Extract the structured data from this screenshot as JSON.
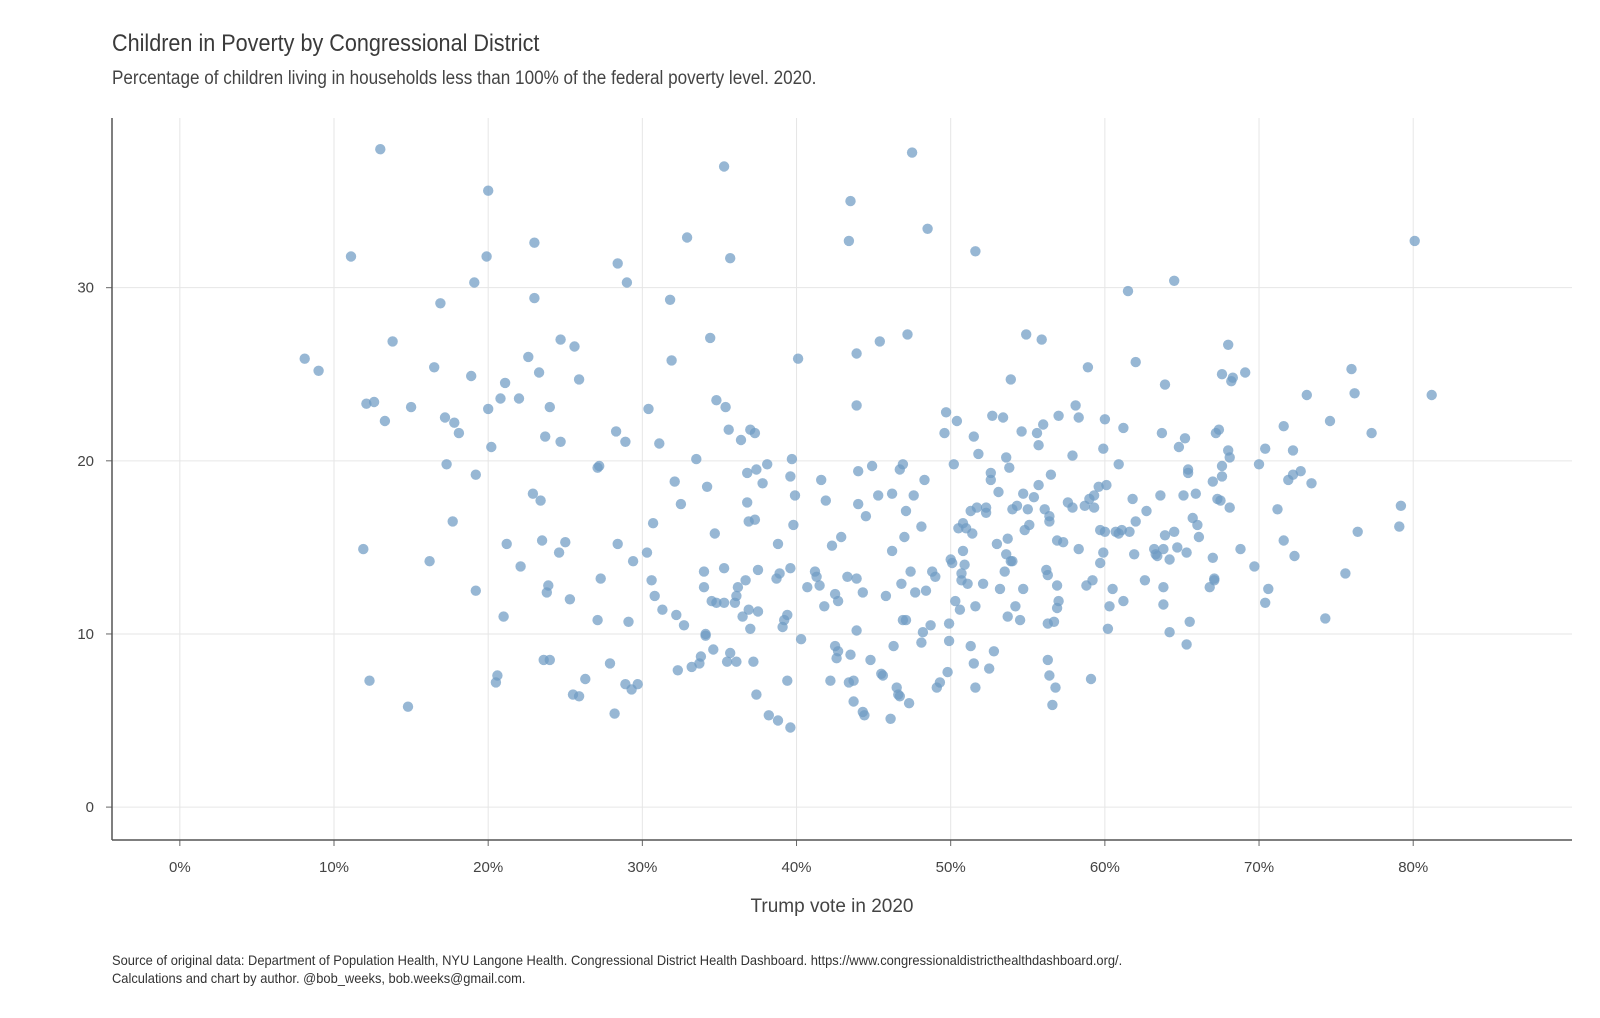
{
  "chart_data": {
    "type": "scatter",
    "title": "Children in Poverty by Congressional District",
    "subtitle": "Percentage of children living in households less than 100% of the federal poverty level. 2020.",
    "xlabel": "Trump vote in 2020",
    "ylabel": "",
    "xlim": [
      -4.4,
      90.3
    ],
    "ylim": [
      -1.9,
      39.8
    ],
    "x_ticks": [
      0,
      10,
      20,
      30,
      40,
      50,
      60,
      70,
      80
    ],
    "x_tick_labels": [
      "0%",
      "10%",
      "20%",
      "30%",
      "40%",
      "50%",
      "60%",
      "70%",
      "80%"
    ],
    "y_ticks": [
      0,
      10,
      20,
      30
    ],
    "y_tick_labels": [
      "0",
      "10",
      "20",
      "30"
    ],
    "grid": true,
    "legend": "none",
    "point_color": "#6f9bc4",
    "caption_lines": [
      "Source of original data: Department of Population Health, NYU Langone Health. Congressional District Health Dashboard. https://www.congressionaldistricthealthdashboard.org/.",
      "Calculations and chart by author. @bob_weeks, bob.weeks@gmail.com."
    ],
    "points": [
      [
        8.1,
        25.9
      ],
      [
        9.0,
        25.2
      ],
      [
        11.1,
        31.8
      ],
      [
        11.9,
        14.9
      ],
      [
        12.1,
        23.3
      ],
      [
        12.3,
        7.3
      ],
      [
        12.6,
        23.4
      ],
      [
        13.0,
        38.0
      ],
      [
        13.3,
        22.3
      ],
      [
        13.8,
        26.9
      ],
      [
        14.8,
        5.8
      ],
      [
        15.0,
        23.1
      ],
      [
        16.2,
        14.2
      ],
      [
        16.5,
        25.4
      ],
      [
        16.9,
        29.1
      ],
      [
        17.2,
        22.5
      ],
      [
        17.3,
        19.8
      ],
      [
        17.7,
        16.5
      ],
      [
        17.8,
        22.2
      ],
      [
        18.1,
        21.6
      ],
      [
        18.9,
        24.9
      ],
      [
        19.1,
        30.3
      ],
      [
        19.2,
        19.2
      ],
      [
        19.2,
        12.5
      ],
      [
        19.9,
        31.8
      ],
      [
        20.0,
        35.6
      ],
      [
        20.0,
        23.0
      ],
      [
        20.2,
        20.8
      ],
      [
        20.5,
        7.2
      ],
      [
        20.6,
        7.6
      ],
      [
        20.8,
        23.6
      ],
      [
        21.0,
        11.0
      ],
      [
        21.1,
        24.5
      ],
      [
        21.2,
        15.2
      ],
      [
        22.0,
        23.6
      ],
      [
        22.1,
        13.9
      ],
      [
        22.6,
        26.0
      ],
      [
        22.9,
        18.1
      ],
      [
        23.0,
        29.4
      ],
      [
        23.0,
        32.6
      ],
      [
        23.3,
        25.1
      ],
      [
        23.4,
        17.7
      ],
      [
        23.5,
        15.4
      ],
      [
        23.6,
        8.5
      ],
      [
        23.7,
        21.4
      ],
      [
        23.8,
        12.4
      ],
      [
        23.9,
        12.8
      ],
      [
        24.0,
        23.1
      ],
      [
        24.0,
        8.5
      ],
      [
        24.6,
        14.7
      ],
      [
        24.7,
        27.0
      ],
      [
        24.7,
        21.1
      ],
      [
        25.0,
        15.3
      ],
      [
        25.3,
        12.0
      ],
      [
        25.5,
        6.5
      ],
      [
        25.6,
        26.6
      ],
      [
        25.9,
        6.4
      ],
      [
        25.9,
        24.7
      ],
      [
        26.3,
        7.4
      ],
      [
        27.1,
        10.8
      ],
      [
        27.1,
        19.6
      ],
      [
        27.2,
        19.7
      ],
      [
        27.3,
        13.2
      ],
      [
        27.9,
        8.3
      ],
      [
        28.2,
        5.4
      ],
      [
        28.3,
        21.7
      ],
      [
        28.4,
        31.4
      ],
      [
        28.4,
        15.2
      ],
      [
        28.9,
        7.1
      ],
      [
        28.9,
        21.1
      ],
      [
        29.0,
        30.3
      ],
      [
        29.1,
        10.7
      ],
      [
        29.3,
        6.8
      ],
      [
        29.4,
        14.2
      ],
      [
        29.7,
        7.1
      ],
      [
        30.3,
        14.7
      ],
      [
        30.4,
        23.0
      ],
      [
        30.6,
        13.1
      ],
      [
        30.7,
        16.4
      ],
      [
        30.8,
        12.2
      ],
      [
        31.1,
        21.0
      ],
      [
        31.3,
        11.4
      ],
      [
        31.8,
        29.3
      ],
      [
        31.9,
        25.8
      ],
      [
        32.1,
        18.8
      ],
      [
        32.2,
        11.1
      ],
      [
        32.3,
        7.9
      ],
      [
        32.5,
        17.5
      ],
      [
        32.7,
        10.5
      ],
      [
        32.9,
        32.9
      ],
      [
        33.2,
        8.1
      ],
      [
        33.5,
        20.1
      ],
      [
        33.7,
        8.3
      ],
      [
        33.8,
        8.7
      ],
      [
        34.0,
        13.6
      ],
      [
        34.0,
        12.7
      ],
      [
        34.1,
        10.0
      ],
      [
        34.1,
        9.9
      ],
      [
        34.2,
        18.5
      ],
      [
        34.4,
        27.1
      ],
      [
        34.5,
        11.9
      ],
      [
        34.6,
        9.1
      ],
      [
        34.7,
        15.8
      ],
      [
        34.8,
        11.8
      ],
      [
        34.8,
        23.5
      ],
      [
        35.3,
        11.8
      ],
      [
        35.3,
        37.0
      ],
      [
        35.3,
        13.8
      ],
      [
        35.4,
        23.1
      ],
      [
        35.5,
        8.4
      ],
      [
        35.6,
        21.8
      ],
      [
        35.7,
        31.7
      ],
      [
        35.7,
        8.9
      ],
      [
        36.0,
        11.8
      ],
      [
        36.1,
        12.2
      ],
      [
        36.1,
        8.4
      ],
      [
        36.2,
        12.7
      ],
      [
        36.4,
        21.2
      ],
      [
        36.5,
        11.0
      ],
      [
        36.7,
        13.1
      ],
      [
        36.8,
        19.3
      ],
      [
        36.8,
        17.6
      ],
      [
        36.9,
        11.4
      ],
      [
        36.9,
        16.5
      ],
      [
        37.0,
        10.3
      ],
      [
        37.0,
        21.8
      ],
      [
        37.2,
        8.4
      ],
      [
        37.3,
        21.6
      ],
      [
        37.3,
        16.6
      ],
      [
        37.4,
        19.5
      ],
      [
        37.4,
        6.5
      ],
      [
        37.5,
        13.7
      ],
      [
        37.5,
        11.3
      ],
      [
        37.8,
        18.7
      ],
      [
        38.1,
        19.8
      ],
      [
        38.2,
        5.3
      ],
      [
        38.7,
        13.2
      ],
      [
        38.8,
        15.2
      ],
      [
        38.8,
        5.0
      ],
      [
        38.9,
        13.5
      ],
      [
        39.1,
        10.4
      ],
      [
        39.2,
        10.8
      ],
      [
        39.4,
        11.1
      ],
      [
        39.4,
        7.3
      ],
      [
        39.6,
        19.1
      ],
      [
        39.6,
        4.6
      ],
      [
        39.6,
        13.8
      ],
      [
        39.7,
        20.1
      ],
      [
        39.8,
        16.3
      ],
      [
        39.9,
        18.0
      ],
      [
        40.1,
        25.9
      ],
      [
        40.3,
        9.7
      ],
      [
        40.7,
        12.7
      ],
      [
        41.2,
        13.6
      ],
      [
        41.3,
        13.3
      ],
      [
        41.5,
        12.8
      ],
      [
        41.6,
        18.9
      ],
      [
        41.8,
        11.6
      ],
      [
        41.9,
        17.7
      ],
      [
        42.2,
        7.3
      ],
      [
        42.3,
        15.1
      ],
      [
        42.5,
        9.3
      ],
      [
        42.5,
        12.3
      ],
      [
        42.6,
        8.6
      ],
      [
        42.7,
        11.9
      ],
      [
        42.7,
        9.0
      ],
      [
        42.9,
        15.6
      ],
      [
        43.3,
        13.3
      ],
      [
        43.4,
        7.2
      ],
      [
        43.4,
        32.7
      ],
      [
        43.5,
        35.0
      ],
      [
        43.5,
        8.8
      ],
      [
        43.7,
        7.3
      ],
      [
        43.7,
        6.1
      ],
      [
        43.9,
        13.2
      ],
      [
        43.9,
        26.2
      ],
      [
        43.9,
        10.2
      ],
      [
        43.9,
        23.2
      ],
      [
        44.0,
        19.4
      ],
      [
        44.0,
        17.5
      ],
      [
        44.3,
        12.4
      ],
      [
        44.3,
        5.5
      ],
      [
        44.4,
        5.3
      ],
      [
        44.5,
        16.8
      ],
      [
        44.8,
        8.5
      ],
      [
        44.9,
        19.7
      ],
      [
        45.3,
        18.0
      ],
      [
        45.4,
        26.9
      ],
      [
        45.5,
        7.7
      ],
      [
        45.6,
        7.6
      ],
      [
        45.8,
        12.2
      ],
      [
        46.1,
        5.1
      ],
      [
        46.2,
        18.1
      ],
      [
        46.2,
        14.8
      ],
      [
        46.3,
        9.3
      ],
      [
        46.5,
        6.9
      ],
      [
        46.6,
        6.5
      ],
      [
        46.7,
        19.5
      ],
      [
        46.7,
        6.4
      ],
      [
        46.8,
        12.9
      ],
      [
        46.9,
        10.8
      ],
      [
        46.9,
        19.8
      ],
      [
        47.0,
        15.6
      ],
      [
        47.1,
        17.1
      ],
      [
        47.1,
        10.8
      ],
      [
        47.2,
        27.3
      ],
      [
        47.3,
        6.0
      ],
      [
        47.4,
        13.6
      ],
      [
        47.5,
        37.8
      ],
      [
        47.6,
        18.0
      ],
      [
        47.7,
        12.4
      ],
      [
        48.1,
        16.2
      ],
      [
        48.1,
        9.5
      ],
      [
        48.2,
        10.1
      ],
      [
        48.3,
        18.9
      ],
      [
        48.4,
        12.5
      ],
      [
        48.5,
        33.4
      ],
      [
        48.7,
        10.5
      ],
      [
        48.8,
        13.6
      ],
      [
        49.0,
        13.3
      ],
      [
        49.1,
        6.9
      ],
      [
        49.3,
        7.2
      ],
      [
        49.6,
        21.6
      ],
      [
        49.7,
        22.8
      ],
      [
        49.8,
        7.8
      ],
      [
        49.9,
        10.6
      ],
      [
        49.9,
        9.6
      ],
      [
        50.0,
        14.3
      ],
      [
        50.1,
        14.1
      ],
      [
        50.2,
        19.8
      ],
      [
        50.3,
        11.9
      ],
      [
        50.4,
        22.3
      ],
      [
        50.5,
        16.1
      ],
      [
        50.6,
        11.4
      ],
      [
        50.7,
        13.1
      ],
      [
        50.7,
        13.5
      ],
      [
        50.8,
        14.8
      ],
      [
        50.8,
        16.4
      ],
      [
        50.9,
        14.0
      ],
      [
        51.0,
        16.1
      ],
      [
        51.1,
        12.9
      ],
      [
        51.3,
        17.1
      ],
      [
        51.3,
        9.3
      ],
      [
        51.4,
        15.8
      ],
      [
        51.5,
        8.3
      ],
      [
        51.5,
        21.4
      ],
      [
        51.6,
        6.9
      ],
      [
        51.6,
        11.6
      ],
      [
        51.6,
        32.1
      ],
      [
        51.7,
        17.3
      ],
      [
        51.8,
        20.4
      ],
      [
        52.1,
        12.9
      ],
      [
        52.3,
        17.0
      ],
      [
        52.3,
        17.3
      ],
      [
        52.5,
        8.0
      ],
      [
        52.6,
        19.3
      ],
      [
        52.6,
        18.9
      ],
      [
        52.7,
        22.6
      ],
      [
        52.8,
        9.0
      ],
      [
        53.0,
        15.2
      ],
      [
        53.1,
        18.2
      ],
      [
        53.2,
        12.6
      ],
      [
        53.4,
        22.5
      ],
      [
        53.5,
        13.6
      ],
      [
        53.6,
        14.6
      ],
      [
        53.6,
        20.2
      ],
      [
        53.7,
        15.5
      ],
      [
        53.7,
        11.0
      ],
      [
        53.8,
        19.6
      ],
      [
        53.9,
        24.7
      ],
      [
        53.9,
        14.2
      ],
      [
        54.0,
        17.2
      ],
      [
        54.0,
        14.2
      ],
      [
        54.2,
        11.6
      ],
      [
        54.3,
        17.4
      ],
      [
        54.5,
        10.8
      ],
      [
        54.6,
        21.7
      ],
      [
        54.7,
        18.1
      ],
      [
        54.7,
        12.6
      ],
      [
        54.8,
        16.0
      ],
      [
        54.9,
        27.3
      ],
      [
        55.0,
        17.2
      ],
      [
        55.1,
        16.3
      ],
      [
        55.4,
        17.9
      ],
      [
        55.6,
        21.6
      ],
      [
        55.7,
        20.9
      ],
      [
        55.7,
        18.6
      ],
      [
        55.9,
        27.0
      ],
      [
        56.0,
        22.1
      ],
      [
        56.1,
        17.2
      ],
      [
        56.2,
        13.7
      ],
      [
        56.3,
        13.4
      ],
      [
        56.3,
        10.6
      ],
      [
        56.3,
        8.5
      ],
      [
        56.4,
        7.6
      ],
      [
        56.4,
        16.8
      ],
      [
        56.4,
        16.5
      ],
      [
        56.5,
        19.2
      ],
      [
        56.6,
        5.9
      ],
      [
        56.7,
        10.7
      ],
      [
        56.8,
        6.9
      ],
      [
        56.9,
        15.4
      ],
      [
        56.9,
        12.8
      ],
      [
        56.9,
        11.5
      ],
      [
        57.0,
        11.9
      ],
      [
        57.0,
        22.6
      ],
      [
        57.3,
        15.3
      ],
      [
        57.6,
        17.6
      ],
      [
        57.9,
        20.3
      ],
      [
        57.9,
        17.3
      ],
      [
        58.1,
        23.2
      ],
      [
        58.3,
        22.5
      ],
      [
        58.3,
        14.9
      ],
      [
        58.7,
        17.4
      ],
      [
        58.8,
        12.8
      ],
      [
        58.9,
        25.4
      ],
      [
        59.0,
        17.8
      ],
      [
        59.1,
        7.4
      ],
      [
        59.2,
        13.1
      ],
      [
        59.3,
        18.0
      ],
      [
        59.3,
        17.3
      ],
      [
        59.6,
        18.5
      ],
      [
        59.7,
        16.0
      ],
      [
        59.7,
        14.1
      ],
      [
        59.9,
        14.7
      ],
      [
        59.9,
        20.7
      ],
      [
        60.0,
        22.4
      ],
      [
        60.0,
        15.9
      ],
      [
        60.1,
        18.6
      ],
      [
        60.2,
        10.3
      ],
      [
        60.3,
        11.6
      ],
      [
        60.5,
        12.6
      ],
      [
        60.7,
        15.9
      ],
      [
        60.9,
        15.8
      ],
      [
        60.9,
        19.8
      ],
      [
        61.1,
        16.0
      ],
      [
        61.2,
        11.9
      ],
      [
        61.2,
        21.9
      ],
      [
        61.5,
        29.8
      ],
      [
        61.6,
        15.9
      ],
      [
        61.8,
        17.8
      ],
      [
        61.9,
        14.6
      ],
      [
        62.0,
        25.7
      ],
      [
        62.0,
        16.5
      ],
      [
        62.6,
        13.1
      ],
      [
        62.7,
        17.1
      ],
      [
        63.2,
        14.9
      ],
      [
        63.3,
        14.6
      ],
      [
        63.4,
        14.5
      ],
      [
        63.6,
        18.0
      ],
      [
        63.7,
        21.6
      ],
      [
        63.8,
        11.7
      ],
      [
        63.8,
        12.7
      ],
      [
        63.8,
        14.9
      ],
      [
        63.9,
        24.4
      ],
      [
        63.9,
        15.7
      ],
      [
        64.2,
        14.3
      ],
      [
        64.2,
        10.1
      ],
      [
        64.5,
        15.9
      ],
      [
        64.5,
        30.4
      ],
      [
        64.7,
        15.0
      ],
      [
        64.8,
        20.8
      ],
      [
        65.1,
        18.0
      ],
      [
        65.2,
        21.3
      ],
      [
        65.3,
        9.4
      ],
      [
        65.3,
        14.7
      ],
      [
        65.4,
        19.5
      ],
      [
        65.4,
        19.3
      ],
      [
        65.5,
        10.7
      ],
      [
        65.7,
        16.7
      ],
      [
        65.9,
        18.1
      ],
      [
        66.0,
        16.3
      ],
      [
        66.1,
        15.6
      ],
      [
        66.8,
        12.7
      ],
      [
        67.0,
        14.4
      ],
      [
        67.0,
        18.8
      ],
      [
        67.1,
        13.2
      ],
      [
        67.1,
        13.1
      ],
      [
        67.2,
        21.6
      ],
      [
        67.3,
        17.8
      ],
      [
        67.4,
        21.8
      ],
      [
        67.5,
        17.7
      ],
      [
        67.6,
        19.7
      ],
      [
        67.6,
        25.0
      ],
      [
        67.6,
        19.1
      ],
      [
        68.0,
        26.7
      ],
      [
        68.0,
        20.6
      ],
      [
        68.1,
        17.3
      ],
      [
        68.1,
        20.2
      ],
      [
        68.2,
        24.6
      ],
      [
        68.3,
        24.8
      ],
      [
        68.8,
        14.9
      ],
      [
        69.1,
        25.1
      ],
      [
        69.7,
        13.9
      ],
      [
        70.0,
        19.8
      ],
      [
        70.4,
        20.7
      ],
      [
        70.4,
        11.8
      ],
      [
        70.6,
        12.6
      ],
      [
        71.2,
        17.2
      ],
      [
        71.6,
        22.0
      ],
      [
        71.6,
        15.4
      ],
      [
        71.9,
        18.9
      ],
      [
        72.2,
        20.6
      ],
      [
        72.2,
        19.2
      ],
      [
        72.3,
        14.5
      ],
      [
        72.7,
        19.4
      ],
      [
        73.1,
        23.8
      ],
      [
        73.4,
        18.7
      ],
      [
        74.3,
        10.9
      ],
      [
        74.6,
        22.3
      ],
      [
        75.6,
        13.5
      ],
      [
        76.0,
        25.3
      ],
      [
        76.2,
        23.9
      ],
      [
        76.4,
        15.9
      ],
      [
        77.3,
        21.6
      ],
      [
        79.1,
        16.2
      ],
      [
        79.2,
        17.4
      ],
      [
        80.1,
        32.7
      ],
      [
        81.2,
        23.8
      ]
    ]
  }
}
